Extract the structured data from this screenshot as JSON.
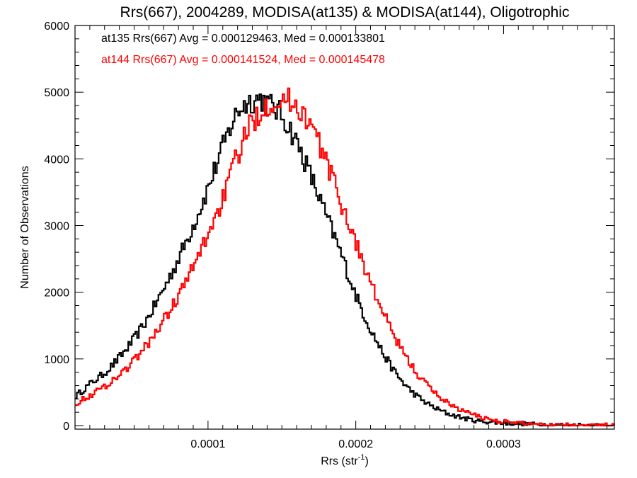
{
  "chart_data": {
    "type": "line",
    "title": "Rrs(667), 2004289, MODISA(at135) & MODISA(at144), Oligotrophic",
    "xlabel_main": "Rrs (str",
    "xlabel_sup": "-1",
    "xlabel_close": ")",
    "ylabel": "Number of Observations",
    "xlim": [
      1e-05,
      0.000375
    ],
    "ylim": [
      0,
      6000
    ],
    "x_ticks": [
      0.0001,
      0.0002,
      0.0003
    ],
    "x_tick_labels": [
      "0.0001",
      "0.0002",
      "0.0003"
    ],
    "y_ticks": [
      0,
      1000,
      2000,
      3000,
      4000,
      5000,
      6000
    ],
    "y_tick_labels": [
      "0",
      "1000",
      "2000",
      "3000",
      "4000",
      "5000",
      "6000"
    ],
    "grid": false,
    "legend_position": "top-left",
    "series": [
      {
        "name": "at135",
        "legend": "at135 Rrs(667) Avg = 0.000129463, Med = 0.000133801",
        "color": "#000000",
        "step": "histogram",
        "x": [
          1e-05,
          2e-05,
          3e-05,
          4e-05,
          5e-05,
          6e-05,
          7e-05,
          8e-05,
          9e-05,
          0.0001,
          0.00011,
          0.00012,
          0.00013,
          0.000135,
          0.00014,
          0.00015,
          0.00016,
          0.00017,
          0.00018,
          0.00019,
          0.0002,
          0.00021,
          0.00022,
          0.00023,
          0.00024,
          0.00025,
          0.00026,
          0.00027,
          0.00028,
          0.0003,
          0.00033,
          0.000375
        ],
        "y": [
          430,
          620,
          790,
          1020,
          1300,
          1640,
          2050,
          2500,
          3000,
          3560,
          4170,
          4700,
          4880,
          4900,
          4830,
          4650,
          4250,
          3720,
          3150,
          2580,
          1960,
          1450,
          1030,
          700,
          470,
          310,
          200,
          130,
          80,
          40,
          15,
          5
        ]
      },
      {
        "name": "at144",
        "legend": "at144 Rrs(667) Avg = 0.000141524, Med = 0.000145478",
        "color": "#ff0000",
        "step": "histogram",
        "x": [
          1e-05,
          2e-05,
          3e-05,
          4e-05,
          5e-05,
          6e-05,
          7e-05,
          8e-05,
          9e-05,
          0.0001,
          0.00011,
          0.00012,
          0.00013,
          0.00014,
          0.00015,
          0.00016,
          0.00017,
          0.00018,
          0.00019,
          0.0002,
          0.00021,
          0.00022,
          0.00023,
          0.00024,
          0.00025,
          0.00026,
          0.00027,
          0.00028,
          0.00029,
          0.0003,
          0.00032,
          0.00035,
          0.000375
        ],
        "y": [
          330,
          450,
          590,
          760,
          980,
          1250,
          1580,
          1950,
          2370,
          2880,
          3400,
          4050,
          4550,
          4820,
          4880,
          4800,
          4480,
          3960,
          3350,
          2750,
          2150,
          1620,
          1180,
          830,
          570,
          380,
          250,
          160,
          100,
          60,
          30,
          10,
          5
        ]
      }
    ]
  }
}
